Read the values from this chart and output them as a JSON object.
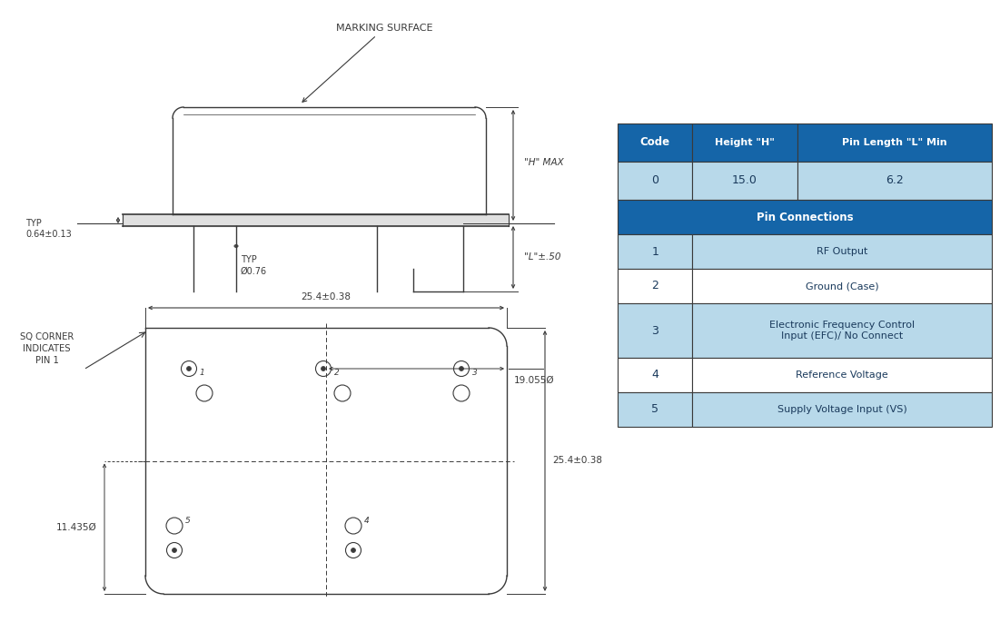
{
  "bg_color": "#ffffff",
  "line_color": "#3a3a3a",
  "table_header_bg": "#1565a8",
  "table_header_text": "#ffffff",
  "table_row_bg_alt": "#b8d9ea",
  "table_row_bg_white": "#ffffff",
  "table_border": "#3a3a3a",
  "marking_surface_text": "MARKING SURFACE",
  "h_max_text": "\"H\" MAX",
  "l_text": "\"L\"±.50",
  "typ1_text": "TYP\n0.64±0.13",
  "typ2_text": "TYP\nØ0.76",
  "sq_corner_text": "SQ CORNER\nINDICATES\nPIN 1",
  "dim_25_4_h": "25.4±0.38",
  "dim_19_055": "19.055Ø",
  "dim_11_435": "11.435Ø",
  "dim_25_4_v": "25.4±0.38"
}
